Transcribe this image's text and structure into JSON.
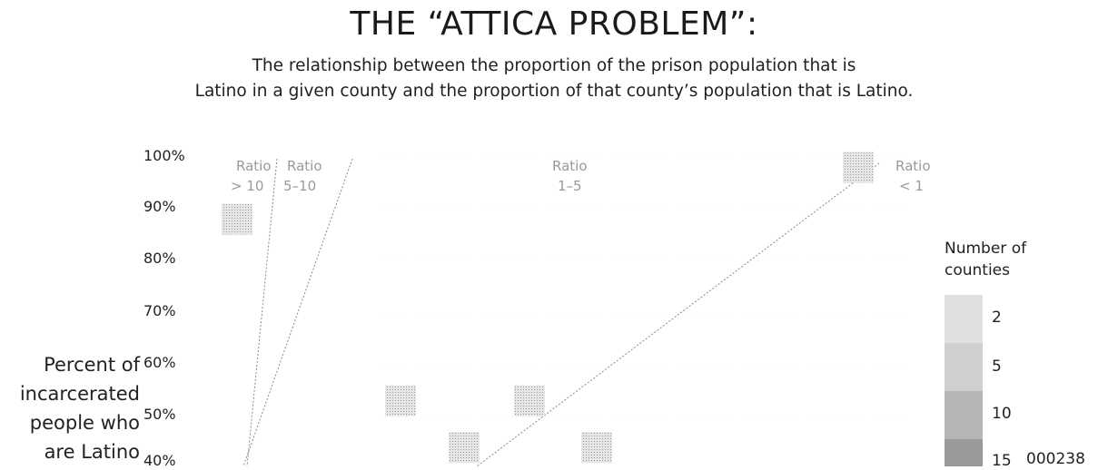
{
  "chart_data": {
    "type": "heatmap",
    "title": "THE “ATTICA PROBLEM”:",
    "subtitle_lines": [
      "The relationship between the proportion of the prison population that is",
      "Latino in a given county and the proportion of that county’s population that is Latino."
    ],
    "ylabel_lines": [
      "Percent of",
      "incarcerated",
      "people who",
      "are Latino"
    ],
    "yticks": [
      "100%",
      "90%",
      "80%",
      "70%",
      "60%",
      "50%",
      "40%"
    ],
    "ytick_values": [
      100,
      90,
      80,
      70,
      60,
      50,
      40
    ],
    "ylim": [
      40,
      100
    ],
    "region_labels": [
      {
        "lines": [
          "Ratio",
          "> 10"
        ]
      },
      {
        "lines": [
          "Ratio",
          "5–10"
        ]
      },
      {
        "lines": [
          "Ratio",
          "1–5"
        ]
      },
      {
        "lines": [
          "Ratio",
          "< 1"
        ]
      }
    ],
    "cells": [
      {
        "y": 88,
        "count": 2
      },
      {
        "y": 98,
        "count": 2
      },
      {
        "y": 53,
        "count": 2
      },
      {
        "y": 53,
        "count": 2
      },
      {
        "y": 44,
        "count": 2
      },
      {
        "y": 44,
        "count": 2
      }
    ],
    "legend": {
      "title_lines": [
        "Number of",
        "counties"
      ],
      "items": [
        {
          "label": "2",
          "color": "#e0e0e0"
        },
        {
          "label": "5",
          "color": "#cfcfcf"
        },
        {
          "label": "10",
          "color": "#b5b5b5"
        },
        {
          "label": "15",
          "color": "#9a9a9a"
        }
      ]
    },
    "code_label": "000238"
  }
}
